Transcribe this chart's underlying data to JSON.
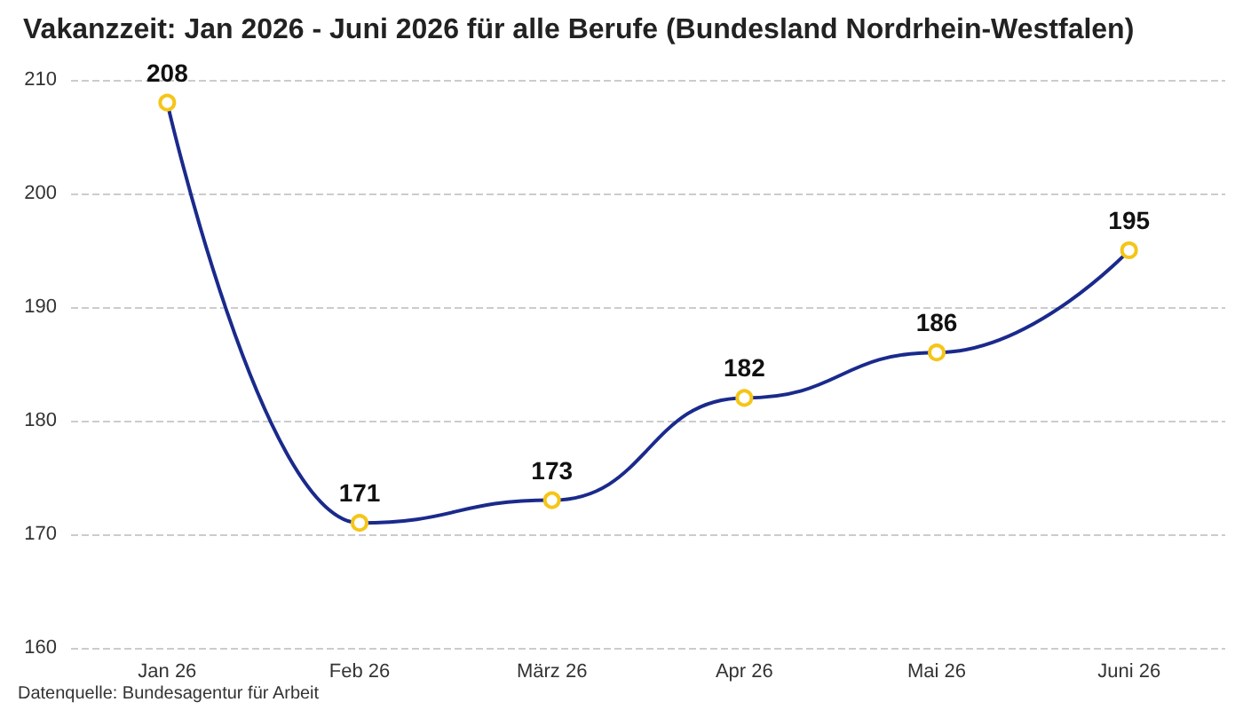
{
  "chart_data": {
    "type": "line",
    "title": "Vakanzzeit: Jan 2026 - Juni 2026 für alle Berufe (Bundesland Nordrhein-Westfalen)",
    "categories": [
      "Jan 26",
      "Feb 26",
      "März 26",
      "Apr 26",
      "Mai 26",
      "Juni 26"
    ],
    "series": [
      {
        "color": "#1a2a8c",
        "values": [
          208,
          171,
          173,
          182,
          186,
          195
        ]
      }
    ],
    "marker": "circle",
    "data_labels": true,
    "ylim": [
      160,
      210
    ],
    "yticks": [
      160,
      170,
      180,
      190,
      200,
      210
    ],
    "grid": "y",
    "annotations": [
      "Datenquelle: Bundesagentur für Arbeit"
    ]
  }
}
